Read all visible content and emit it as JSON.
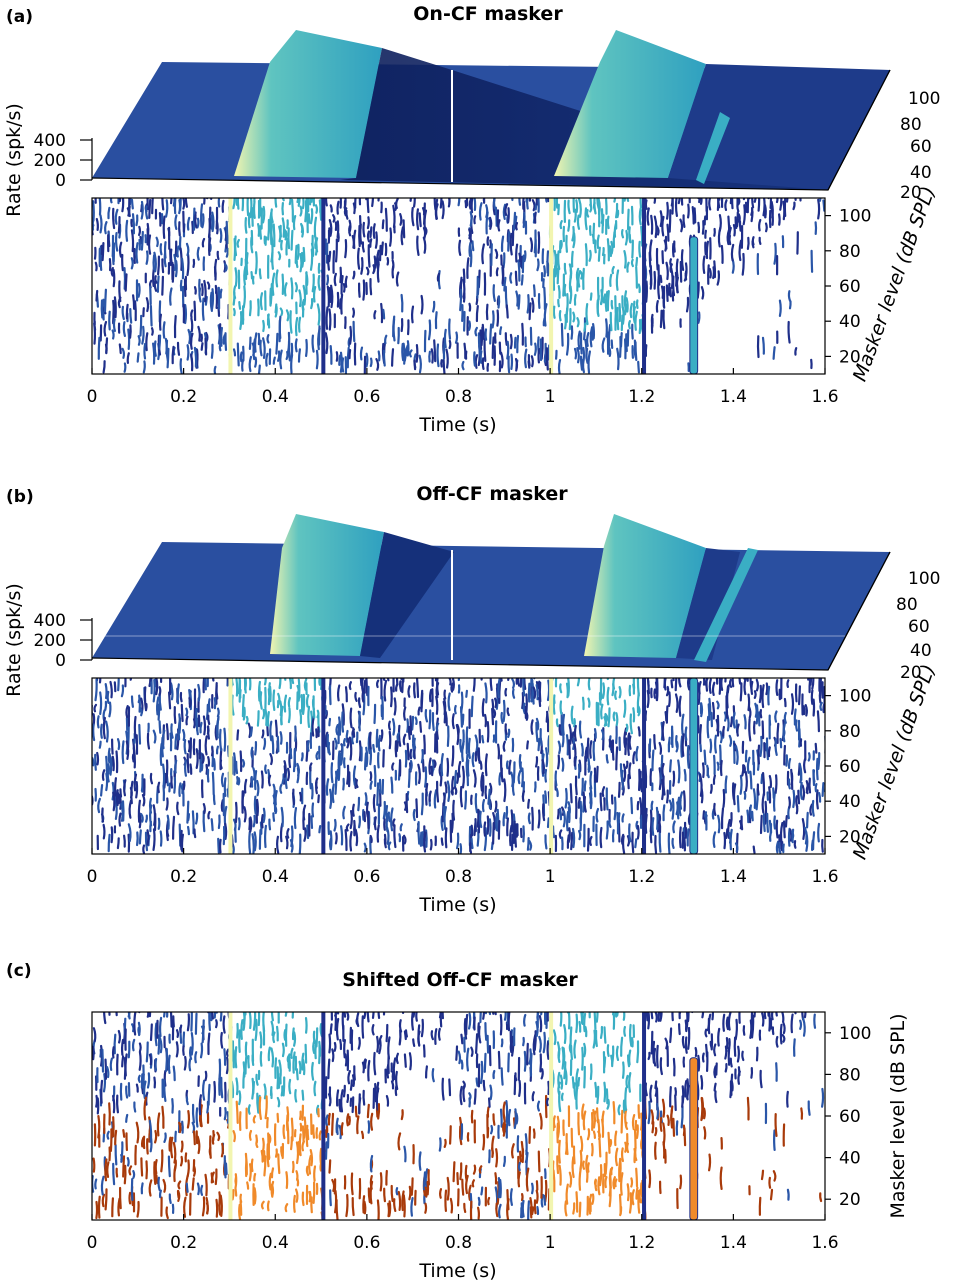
{
  "chart_data": [
    {
      "panel": "(a)",
      "type": "area",
      "title": "On-CF masker",
      "surface": {
        "rate_label": "Rate (spk/s)",
        "rate_ticks": [
          0,
          200,
          400
        ],
        "level_label": "Masker level (dB SPL)",
        "level_ticks": [
          20,
          40,
          60,
          80,
          100
        ]
      },
      "contour": {
        "xlabel": "Time (s)",
        "ylabel": "Masker level (dB SPL)",
        "xlim": [
          0,
          1.6
        ],
        "ylim": [
          10,
          110
        ],
        "xticks": [
          0,
          0.2,
          0.4,
          0.6,
          0.8,
          1,
          1.2,
          1.4,
          1.6
        ],
        "xtick_labels": [
          "0",
          "0.2",
          "0.4",
          "0.6",
          "0.8",
          "1",
          "1.2",
          "1.4",
          "1.6"
        ],
        "yticks": [
          20,
          40,
          60,
          80,
          100
        ]
      }
    },
    {
      "panel": "(b)",
      "type": "area",
      "title": "Off-CF masker",
      "surface": {
        "rate_label": "Rate (spk/s)",
        "rate_ticks": [
          0,
          200,
          400
        ],
        "level_label": "Masker level (dB SPL)",
        "level_ticks": [
          20,
          40,
          60,
          80,
          100
        ]
      },
      "contour": {
        "xlabel": "Time (s)",
        "ylabel": "Masker level (dB SPL)",
        "xlim": [
          0,
          1.6
        ],
        "ylim": [
          10,
          110
        ],
        "xticks": [
          0,
          0.2,
          0.4,
          0.6,
          0.8,
          1,
          1.2,
          1.4,
          1.6
        ],
        "xtick_labels": [
          "0",
          "0.2",
          "0.4",
          "0.6",
          "0.8",
          "1",
          "1.2",
          "1.4",
          "1.6"
        ],
        "yticks": [
          20,
          40,
          60,
          80,
          100
        ]
      }
    },
    {
      "panel": "(c)",
      "type": "heatmap",
      "title": "Shifted Off-CF masker",
      "contour": {
        "xlabel": "Time (s)",
        "ylabel": "Masker level (dB SPL)",
        "xlim": [
          0,
          1.6
        ],
        "ylim": [
          10,
          110
        ],
        "xticks": [
          0,
          0.2,
          0.4,
          0.6,
          0.8,
          1,
          1.2,
          1.4,
          1.6
        ],
        "xtick_labels": [
          "0",
          "0.2",
          "0.4",
          "0.6",
          "0.8",
          "1",
          "1.2",
          "1.4",
          "1.6"
        ],
        "yticks": [
          20,
          40,
          60,
          80,
          100
        ],
        "overlay_level_max": 60
      }
    }
  ],
  "colors": {
    "blue_dark": "#1f2f8a",
    "blue": "#2a56a8",
    "cyan": "#3aaec4",
    "yellow": "#f2f5b0",
    "navy": "#0d1e5a",
    "orange_dark": "#a83a0a",
    "orange": "#f08a2a"
  }
}
